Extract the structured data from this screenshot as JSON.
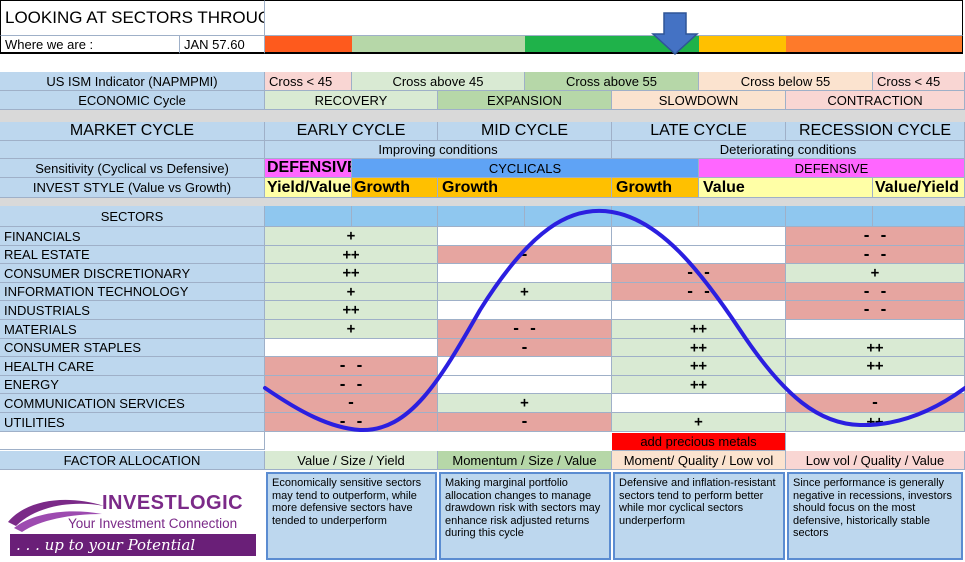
{
  "title": "LOOKING AT SECTORS THROUGHOUT THE BUSINESS CYCLE",
  "where_label": "Where we are :",
  "where_value": "JAN 57.60",
  "colors": {
    "label_blue": "#bdd7ee",
    "green_light": "#d9ead3",
    "green_mid": "#b6d7a8",
    "green_dark": "#1fb24a",
    "orange": "#fe5a1d",
    "pink": "#e6a5a0",
    "pink_light": "#f9d6d3",
    "yellow": "#ffc000",
    "yellow_light": "#ffffa6",
    "magenta": "#ff66ff",
    "sky": "#5fa3f5",
    "curve": "#2b1fe0",
    "pointer": "#4472c4",
    "alert_red": "#ff0000"
  },
  "ism": {
    "label": "US ISM Indicator (NAPMPMI)",
    "cells": [
      "Cross < 45",
      "Cross above 45",
      "Cross above 55",
      "Cross below 55",
      "Cross < 45"
    ]
  },
  "economic": {
    "label": "ECONOMIC Cycle",
    "cells": [
      "RECOVERY",
      "EXPANSION",
      "SLOWDOWN",
      "CONTRACTION"
    ]
  },
  "market": {
    "label": "MARKET CYCLE",
    "phases": [
      "EARLY CYCLE",
      "MID CYCLE",
      "LATE CYCLE",
      "RECESSION CYCLE"
    ],
    "conditions_improving": "Improving conditions",
    "conditions_deteriorating": "Deteriorating conditions"
  },
  "sensitivity": {
    "label": "Sensitivity (Cyclical vs Defensive)",
    "defensive_left": "DEFENSIVE",
    "cyclicals": "CYCLICALS",
    "defensive_right": "DEFENSIVE"
  },
  "invest_style": {
    "label": "INVEST STYLE (Value vs Growth)",
    "cells": [
      "Yield/Value",
      "Growth",
      "Growth",
      "Growth",
      "Value",
      "Value/Yield"
    ]
  },
  "sectors_header": "SECTORS",
  "sectors": [
    {
      "name": "FINANCIALS",
      "signals": [
        "+",
        "",
        "",
        "- -"
      ]
    },
    {
      "name": "REAL ESTATE",
      "signals": [
        "++",
        "-",
        "",
        "- -"
      ]
    },
    {
      "name": "CONSUMER DISCRETIONARY",
      "signals": [
        "++",
        "",
        "- -",
        "+"
      ]
    },
    {
      "name": "INFORMATION TECHNOLOGY",
      "signals": [
        "+",
        "+",
        "- -",
        "- -"
      ]
    },
    {
      "name": "INDUSTRIALS",
      "signals": [
        "++",
        "",
        "",
        "- -"
      ]
    },
    {
      "name": "MATERIALS",
      "signals": [
        "+",
        "- -",
        "++",
        ""
      ]
    },
    {
      "name": "CONSUMER STAPLES",
      "signals": [
        "",
        "-",
        "++",
        "++"
      ]
    },
    {
      "name": "HEALTH CARE",
      "signals": [
        "- -",
        "",
        "++",
        "++"
      ]
    },
    {
      "name": "ENERGY",
      "signals": [
        "- -",
        "",
        "++",
        ""
      ]
    },
    {
      "name": "COMMUNICATION SERVICES",
      "signals": [
        "-",
        "+",
        "",
        "-"
      ]
    },
    {
      "name": "UTILITIES",
      "signals": [
        "- -",
        "-",
        "+",
        "++"
      ]
    }
  ],
  "precious_metals": "add precious metals",
  "factor": {
    "label": "FACTOR ALLOCATION",
    "cells": [
      "Value / Size / Yield",
      "Momentum / Size / Value",
      "Moment/ Quality / Low vol",
      "Low vol / Quality / Value"
    ]
  },
  "descriptions": [
    "Economically sensitive sectors may tend to outperform, while more defensive sectors have tended to underperform",
    "Making marginal portfolio allocation changes to manage drawdown risk with sectors may enhance risk adjusted returns during this cycle",
    "Defensive and inflation-resistant sectors tend to perform better while mor cyclical sectors underperform",
    "Since performance is generally negative in recessions, investors should focus on the most defensive, historically stable sectors"
  ],
  "logo": {
    "brand": "INVESTLOGIC",
    "tagline": "Your Investment Connection",
    "slogan": ". . . up to your Potential"
  }
}
